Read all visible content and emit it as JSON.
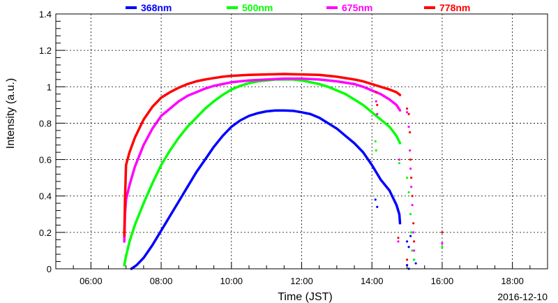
{
  "chart_data": {
    "type": "scatter",
    "title": "",
    "xlabel": "Time (JST)",
    "ylabel": "Intensity (a.u.)",
    "date_label": "2016-12-10",
    "x_unit": "hours (JST)",
    "xlim": [
      5.0,
      19.0
    ],
    "ylim": [
      0,
      1.4
    ],
    "x_ticks": [
      {
        "value": 6,
        "label": "06:00"
      },
      {
        "value": 8,
        "label": "08:00"
      },
      {
        "value": 10,
        "label": "10:00"
      },
      {
        "value": 12,
        "label": "12:00"
      },
      {
        "value": 14,
        "label": "14:00"
      },
      {
        "value": 16,
        "label": "16:00"
      },
      {
        "value": 18,
        "label": "18:00"
      }
    ],
    "y_ticks": [
      {
        "value": 0,
        "label": "0"
      },
      {
        "value": 0.2,
        "label": "0.2"
      },
      {
        "value": 0.4,
        "label": "0.4"
      },
      {
        "value": 0.6,
        "label": "0.6"
      },
      {
        "value": 0.8,
        "label": "0.8"
      },
      {
        "value": 1.0,
        "label": "1"
      },
      {
        "value": 1.2,
        "label": "1.2"
      },
      {
        "value": 1.4,
        "label": "1.4"
      }
    ],
    "grid": true,
    "legend_position": "top",
    "series": [
      {
        "name": "368nm",
        "color": "#0000ff",
        "points": [
          [
            7.15,
            0.0
          ],
          [
            7.3,
            0.02
          ],
          [
            7.5,
            0.06
          ],
          [
            7.75,
            0.13
          ],
          [
            8.0,
            0.21
          ],
          [
            8.25,
            0.29
          ],
          [
            8.5,
            0.37
          ],
          [
            8.75,
            0.45
          ],
          [
            9.0,
            0.53
          ],
          [
            9.25,
            0.6
          ],
          [
            9.5,
            0.67
          ],
          [
            9.75,
            0.73
          ],
          [
            10.0,
            0.78
          ],
          [
            10.25,
            0.815
          ],
          [
            10.5,
            0.84
          ],
          [
            10.75,
            0.855
          ],
          [
            11.0,
            0.865
          ],
          [
            11.25,
            0.87
          ],
          [
            11.5,
            0.87
          ],
          [
            11.75,
            0.868
          ],
          [
            12.0,
            0.86
          ],
          [
            12.25,
            0.85
          ],
          [
            12.5,
            0.83
          ],
          [
            12.75,
            0.8
          ],
          [
            13.0,
            0.77
          ],
          [
            13.25,
            0.73
          ],
          [
            13.5,
            0.69
          ],
          [
            13.75,
            0.64
          ],
          [
            14.0,
            0.57
          ],
          [
            14.25,
            0.49
          ],
          [
            14.5,
            0.43
          ],
          [
            14.7,
            0.35
          ],
          [
            14.78,
            0.3
          ],
          [
            14.8,
            0.25
          ]
        ],
        "scatter_points": [
          [
            14.1,
            0.38
          ],
          [
            14.15,
            0.34
          ],
          [
            15.0,
            0.15
          ],
          [
            15.05,
            0.12
          ],
          [
            15.1,
            0.18
          ],
          [
            15.15,
            0.1
          ],
          [
            15.2,
            0.05
          ],
          [
            15.25,
            0.03
          ],
          [
            15.0,
            0.02
          ],
          [
            15.05,
            0.0
          ]
        ]
      },
      {
        "name": "500nm",
        "color": "#00ff00",
        "points": [
          [
            6.95,
            0.02
          ],
          [
            7.0,
            0.07
          ],
          [
            7.1,
            0.15
          ],
          [
            7.25,
            0.24
          ],
          [
            7.5,
            0.36
          ],
          [
            7.75,
            0.47
          ],
          [
            8.0,
            0.57
          ],
          [
            8.25,
            0.65
          ],
          [
            8.5,
            0.72
          ],
          [
            8.75,
            0.78
          ],
          [
            9.0,
            0.83
          ],
          [
            9.25,
            0.88
          ],
          [
            9.5,
            0.92
          ],
          [
            9.75,
            0.955
          ],
          [
            10.0,
            0.985
          ],
          [
            10.25,
            1.005
          ],
          [
            10.5,
            1.02
          ],
          [
            10.75,
            1.03
          ],
          [
            11.0,
            1.035
          ],
          [
            11.25,
            1.04
          ],
          [
            11.5,
            1.04
          ],
          [
            11.75,
            1.04
          ],
          [
            12.0,
            1.035
          ],
          [
            12.25,
            1.025
          ],
          [
            12.5,
            1.015
          ],
          [
            12.75,
            1.0
          ],
          [
            13.0,
            0.98
          ],
          [
            13.25,
            0.96
          ],
          [
            13.5,
            0.93
          ],
          [
            13.75,
            0.9
          ],
          [
            14.0,
            0.86
          ],
          [
            14.25,
            0.82
          ],
          [
            14.5,
            0.78
          ],
          [
            14.7,
            0.73
          ],
          [
            14.8,
            0.69
          ]
        ],
        "scatter_points": [
          [
            14.1,
            0.7
          ],
          [
            14.12,
            0.65
          ],
          [
            14.78,
            0.58
          ],
          [
            15.0,
            0.5
          ],
          [
            15.05,
            0.42
          ],
          [
            15.1,
            0.3
          ],
          [
            15.12,
            0.2
          ],
          [
            15.15,
            0.1
          ],
          [
            15.2,
            0.05
          ],
          [
            16.0,
            0.12
          ]
        ]
      },
      {
        "name": "675nm",
        "color": "#ff00ff",
        "points": [
          [
            6.95,
            0.15
          ],
          [
            6.97,
            0.3
          ],
          [
            7.0,
            0.38
          ],
          [
            7.1,
            0.46
          ],
          [
            7.25,
            0.56
          ],
          [
            7.5,
            0.68
          ],
          [
            7.75,
            0.77
          ],
          [
            8.0,
            0.84
          ],
          [
            8.25,
            0.88
          ],
          [
            8.5,
            0.92
          ],
          [
            8.75,
            0.95
          ],
          [
            9.0,
            0.97
          ],
          [
            9.25,
            0.99
          ],
          [
            9.5,
            1.005
          ],
          [
            9.75,
            1.015
          ],
          [
            10.0,
            1.025
          ],
          [
            10.5,
            1.035
          ],
          [
            11.0,
            1.04
          ],
          [
            11.5,
            1.045
          ],
          [
            12.0,
            1.045
          ],
          [
            12.5,
            1.04
          ],
          [
            13.0,
            1.03
          ],
          [
            13.5,
            1.015
          ],
          [
            13.75,
            1.0
          ],
          [
            14.0,
            0.98
          ],
          [
            14.25,
            0.96
          ],
          [
            14.5,
            0.93
          ],
          [
            14.7,
            0.9
          ],
          [
            14.8,
            0.87
          ]
        ],
        "scatter_points": [
          [
            14.12,
            0.92
          ],
          [
            14.15,
            0.85
          ],
          [
            14.78,
            0.6
          ],
          [
            15.0,
            0.86
          ],
          [
            15.05,
            0.78
          ],
          [
            15.08,
            0.65
          ],
          [
            15.1,
            0.55
          ],
          [
            15.12,
            0.45
          ],
          [
            15.15,
            0.35
          ],
          [
            15.18,
            0.2
          ],
          [
            15.2,
            0.1
          ],
          [
            14.75,
            0.15
          ],
          [
            16.0,
            0.14
          ]
        ]
      },
      {
        "name": "778nm",
        "color": "#ff0000",
        "points": [
          [
            6.95,
            0.18
          ],
          [
            6.97,
            0.38
          ],
          [
            7.0,
            0.57
          ],
          [
            7.1,
            0.64
          ],
          [
            7.25,
            0.72
          ],
          [
            7.5,
            0.82
          ],
          [
            7.75,
            0.89
          ],
          [
            8.0,
            0.94
          ],
          [
            8.25,
            0.97
          ],
          [
            8.5,
            0.995
          ],
          [
            8.75,
            1.015
          ],
          [
            9.0,
            1.03
          ],
          [
            9.25,
            1.04
          ],
          [
            9.5,
            1.048
          ],
          [
            9.75,
            1.055
          ],
          [
            10.0,
            1.06
          ],
          [
            10.5,
            1.065
          ],
          [
            11.0,
            1.068
          ],
          [
            11.5,
            1.07
          ],
          [
            12.0,
            1.068
          ],
          [
            12.5,
            1.065
          ],
          [
            13.0,
            1.055
          ],
          [
            13.5,
            1.04
          ],
          [
            13.75,
            1.03
          ],
          [
            14.0,
            1.015
          ],
          [
            14.25,
            1.0
          ],
          [
            14.5,
            0.985
          ],
          [
            14.7,
            0.97
          ],
          [
            14.8,
            0.955
          ]
        ],
        "scatter_points": [
          [
            14.12,
            0.97
          ],
          [
            14.15,
            0.9
          ],
          [
            15.0,
            0.88
          ],
          [
            15.05,
            0.85
          ],
          [
            15.08,
            0.75
          ],
          [
            15.1,
            0.6
          ],
          [
            15.12,
            0.5
          ],
          [
            15.15,
            0.4
          ],
          [
            15.18,
            0.25
          ],
          [
            15.2,
            0.15
          ],
          [
            14.75,
            0.17
          ],
          [
            15.0,
            0.05
          ],
          [
            16.0,
            0.2
          ]
        ]
      }
    ]
  }
}
